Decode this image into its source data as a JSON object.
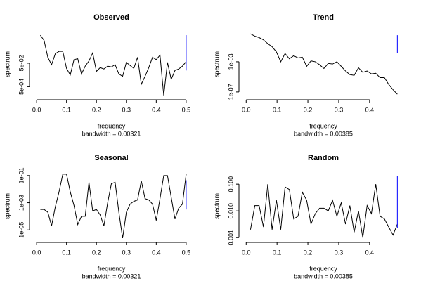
{
  "chart_data": [
    {
      "type": "line",
      "title": "Observed",
      "xlabel": "frequency",
      "ylabel": "spectrum",
      "subtitle": "bandwidth = 0.00321",
      "log_y": true,
      "color": "#000000",
      "x": [
        0.0125,
        0.025,
        0.0375,
        0.05,
        0.0625,
        0.075,
        0.0875,
        0.1,
        0.1125,
        0.125,
        0.1375,
        0.15,
        0.1625,
        0.175,
        0.1875,
        0.2,
        0.2125,
        0.225,
        0.2375,
        0.25,
        0.2625,
        0.275,
        0.2875,
        0.3,
        0.3125,
        0.325,
        0.3375,
        0.35,
        0.3625,
        0.375,
        0.3875,
        0.4,
        0.4125,
        0.425,
        0.4375,
        0.45,
        0.4625,
        0.475,
        0.4875,
        0.5
      ],
      "values": [
        11.9,
        4.3,
        0.158,
        0.037,
        0.32,
        0.5,
        0.5,
        0.018,
        0.005,
        0.1,
        0.12,
        0.006,
        0.028,
        0.077,
        0.37,
        0.01,
        0.021,
        0.016,
        0.028,
        0.024,
        0.037,
        0.006,
        0.0038,
        0.058,
        0.032,
        0.018,
        0.158,
        0.0008,
        0.0038,
        0.021,
        0.158,
        0.1,
        0.24,
        9e-05,
        0.058,
        0.0021,
        0.012,
        0.016,
        0.028,
        0.067
      ],
      "interval": {
        "x": 0.5,
        "values": [
          0.012,
          12
        ],
        "color": "#0000ff"
      },
      "xlim": [
        -0.012,
        0.512
      ],
      "xticks": [
        {
          "value": 0,
          "label": "0.0"
        },
        0.1,
        0.2,
        0.3,
        0.4,
        0.5
      ],
      "ylim": [
        7.7e-05,
        21
      ],
      "yticks": [
        {
          "value": 0.0005,
          "label": "5e-04"
        },
        {
          "value": 0.05,
          "label": "5e-02"
        }
      ]
    },
    {
      "type": "line",
      "title": "Trend",
      "xlabel": "frequency",
      "ylabel": "spectrum",
      "subtitle": "bandwidth = 0.00385",
      "log_y": true,
      "color": "#000000",
      "x": [
        0.014,
        0.028,
        0.042,
        0.056,
        0.07,
        0.084,
        0.098,
        0.112,
        0.126,
        0.14,
        0.154,
        0.168,
        0.182,
        0.196,
        0.21,
        0.224,
        0.238,
        0.252,
        0.266,
        0.28,
        0.294,
        0.308,
        0.322,
        0.336,
        0.35,
        0.364,
        0.378,
        0.392,
        0.406,
        0.42,
        0.434,
        0.448,
        0.462,
        0.476,
        0.49
      ],
      "values": [
        5,
        2.5,
        1.6,
        0.8,
        0.25,
        0.1,
        0.02,
        0.001,
        0.0126,
        0.0025,
        0.0063,
        0.0032,
        0.004,
        0.00025,
        0.0013,
        0.001,
        0.0004,
        0.00013,
        0.0006,
        0.0005,
        0.001,
        0.00025,
        6e-05,
        2e-05,
        1.6e-05,
        0.00016,
        4e-05,
        6e-05,
        2.5e-05,
        3e-05,
        8e-06,
        8e-06,
        1e-06,
        2e-07,
        5e-08
      ],
      "interval": {
        "x": 0.49,
        "values": [
          0.014,
          3.3
        ],
        "color": "#0000ff"
      },
      "xlim": [
        -0.012,
        0.512
      ],
      "xticks": [
        {
          "value": 0,
          "label": "0.0"
        },
        0.1,
        0.2,
        0.3,
        0.4
      ],
      "ylim": [
        2.7e-08,
        8
      ],
      "yticks": [
        {
          "value": 1e-07,
          "label": "1e-07"
        },
        {
          "value": 0.001,
          "label": "1e-03"
        }
      ]
    },
    {
      "type": "line",
      "title": "Seasonal",
      "xlabel": "frequency",
      "ylabel": "spectrum",
      "subtitle": "bandwidth = 0.00321",
      "log_y": true,
      "color": "#000000",
      "x": [
        0.0125,
        0.025,
        0.0375,
        0.05,
        0.0625,
        0.075,
        0.0875,
        0.1,
        0.1125,
        0.125,
        0.1375,
        0.15,
        0.1625,
        0.175,
        0.1875,
        0.2,
        0.2125,
        0.225,
        0.2375,
        0.25,
        0.2625,
        0.275,
        0.2875,
        0.3,
        0.3125,
        0.325,
        0.3375,
        0.35,
        0.3625,
        0.375,
        0.3875,
        0.4,
        0.4125,
        0.425,
        0.4375,
        0.45,
        0.4625,
        0.475,
        0.4875,
        0.5
      ],
      "values": [
        0.00032,
        0.00032,
        0.0002,
        2e-05,
        0.0005,
        0.0063,
        0.126,
        0.126,
        0.0063,
        0.00063,
        2.5e-05,
        0.0001,
        0.0001,
        0.032,
        0.00025,
        0.00032,
        0.000126,
        2e-05,
        0.001,
        0.025,
        0.032,
        0.0002,
        2.5e-06,
        0.0002,
        0.00079,
        0.00126,
        0.0016,
        0.04,
        0.002,
        0.0016,
        0.00079,
        5e-05,
        0.002,
        0.1,
        0.1,
        0.0025,
        6.3e-05,
        0.0004,
        0.00079,
        0.126
      ],
      "interval": {
        "x": 0.5,
        "values": [
          0.00032,
          0.045
        ],
        "color": "#0000ff"
      },
      "xlim": [
        -0.012,
        0.512
      ],
      "xticks": [
        {
          "value": 0,
          "label": "0.0"
        },
        0.1,
        0.2,
        0.3,
        0.4,
        0.5
      ],
      "ylim": [
        2.2e-06,
        0.14
      ],
      "yticks": [
        {
          "value": 1e-05,
          "label": "1e-05"
        },
        {
          "value": 0.001,
          "label": "1e-03"
        },
        {
          "value": 0.1,
          "label": "1e-01"
        }
      ]
    },
    {
      "type": "line",
      "title": "Random",
      "xlabel": "frequency",
      "ylabel": "spectrum",
      "subtitle": "bandwidth = 0.00385",
      "log_y": true,
      "color": "#000000",
      "x": [
        0.014,
        0.028,
        0.042,
        0.056,
        0.07,
        0.084,
        0.098,
        0.112,
        0.126,
        0.14,
        0.154,
        0.168,
        0.182,
        0.196,
        0.21,
        0.224,
        0.238,
        0.252,
        0.266,
        0.28,
        0.294,
        0.308,
        0.322,
        0.336,
        0.35,
        0.364,
        0.378,
        0.392,
        0.406,
        0.42,
        0.434,
        0.448,
        0.462,
        0.476,
        0.49
      ],
      "values": [
        0.002,
        0.0158,
        0.0158,
        0.0025,
        0.1,
        0.002,
        0.025,
        0.002,
        0.079,
        0.063,
        0.005,
        0.0063,
        0.05,
        0.025,
        0.0032,
        0.0079,
        0.0126,
        0.0126,
        0.01,
        0.025,
        0.0063,
        0.02,
        0.0032,
        0.0158,
        0.0016,
        0.01,
        0.001,
        0.0158,
        0.0079,
        0.1,
        0.0063,
        0.005,
        0.0025,
        0.00126,
        0.0032
      ],
      "interval": {
        "x": 0.49,
        "values": [
          0.0023,
          0.2
        ],
        "color": "#0000ff"
      },
      "xlim": [
        -0.012,
        0.512
      ],
      "xticks": [
        {
          "value": 0,
          "label": "0.0"
        },
        0.1,
        0.2,
        0.3,
        0.4
      ],
      "ylim": [
        0.0009,
        0.25
      ],
      "yticks": [
        0.001,
        {
          "value": 0.01,
          "label": "0.010"
        },
        {
          "value": 0.1,
          "label": "0.100"
        }
      ]
    }
  ]
}
